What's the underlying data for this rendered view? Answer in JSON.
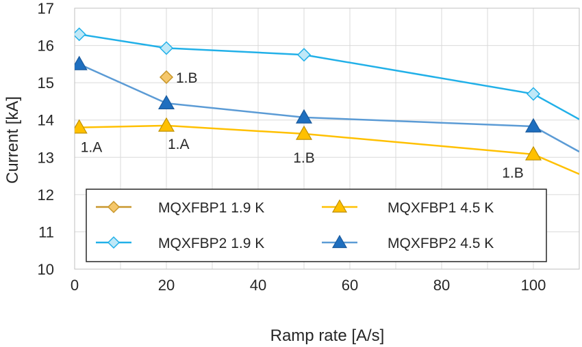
{
  "chart_data": {
    "type": "line",
    "title": "",
    "xlabel": "Ramp rate [A/s]",
    "ylabel": "Current [kA]",
    "xlim": [
      0,
      110
    ],
    "ylim": [
      10,
      17
    ],
    "x_ticks": [
      "0",
      "20",
      "40",
      "60",
      "80",
      "100"
    ],
    "y_ticks": [
      "10",
      "11",
      "12",
      "13",
      "14",
      "15",
      "16",
      "17"
    ],
    "grid": true,
    "legend_position": "bottom",
    "series": [
      {
        "name": "MQXFBP1 1.9 K",
        "marker": "diamond",
        "color": "#f5c76a",
        "stroke": "#c8962a",
        "line": false,
        "points": [
          [
            20,
            15.15
          ]
        ]
      },
      {
        "name": "MQXFBP1 4.5 K",
        "marker": "triangle",
        "color": "#ffc000",
        "stroke": "#bf9000",
        "line": true,
        "points": [
          [
            1,
            13.8
          ],
          [
            20,
            13.85
          ],
          [
            50,
            13.63
          ],
          [
            100,
            13.08
          ],
          [
            110,
            12.55
          ]
        ]
      },
      {
        "name": "MQXFBP2 1.9 K",
        "marker": "diamond",
        "color": "#bfe8f7",
        "stroke": "#21b0e8",
        "line": true,
        "lineColor": "#21b0e8",
        "points": [
          [
            1,
            16.3
          ],
          [
            20,
            15.93
          ],
          [
            50,
            15.75
          ],
          [
            100,
            14.7
          ],
          [
            110,
            14.02
          ]
        ]
      },
      {
        "name": "MQXFBP2 4.5 K",
        "marker": "triangle",
        "color": "#1f6fbf",
        "stroke": "#1a5a9c",
        "line": true,
        "lineColor": "#5b9bd5",
        "points": [
          [
            1,
            15.5
          ],
          [
            20,
            14.45
          ],
          [
            50,
            14.07
          ],
          [
            100,
            13.83
          ],
          [
            110,
            13.15
          ]
        ]
      }
    ],
    "annotations": [
      {
        "text": "1.B",
        "x": 20,
        "y": 15.15
      },
      {
        "text": "1.A",
        "x": 1,
        "y": 13.8
      },
      {
        "text": "1.A",
        "x": 20,
        "y": 13.85
      },
      {
        "text": "1.B",
        "x": 50,
        "y": 13.63
      },
      {
        "text": "1.B",
        "x": 100,
        "y": 13.08
      }
    ]
  }
}
